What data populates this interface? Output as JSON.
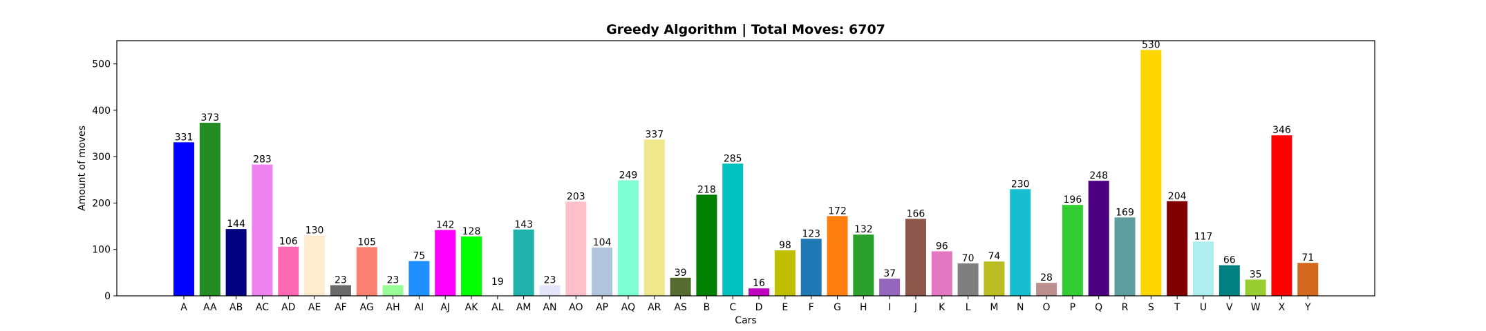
{
  "chart_data": {
    "type": "bar",
    "title": "Greedy Algorithm | Total Moves: 6707",
    "xlabel": "Cars",
    "ylabel": "Amount of moves",
    "ylim": [
      0,
      550
    ],
    "yticks": [
      0,
      100,
      200,
      300,
      400,
      500
    ],
    "grid": false,
    "categories": [
      "A",
      "AA",
      "AB",
      "AC",
      "AD",
      "AE",
      "AF",
      "AG",
      "AH",
      "AI",
      "AJ",
      "AK",
      "AL",
      "AM",
      "AN",
      "AO",
      "AP",
      "AQ",
      "AR",
      "AS",
      "B",
      "C",
      "D",
      "E",
      "F",
      "G",
      "H",
      "I",
      "J",
      "K",
      "L",
      "M",
      "N",
      "O",
      "P",
      "Q",
      "R",
      "S",
      "T",
      "U",
      "V",
      "W",
      "X",
      "Y"
    ],
    "values": [
      331,
      373,
      144,
      283,
      106,
      130,
      23,
      105,
      23,
      75,
      142,
      128,
      19,
      143,
      23,
      203,
      104,
      249,
      337,
      39,
      218,
      285,
      16,
      98,
      123,
      172,
      132,
      37,
      166,
      96,
      70,
      74,
      230,
      28,
      196,
      248,
      169,
      530,
      204,
      117,
      66,
      35,
      346,
      71
    ],
    "colors": [
      "#0000ff",
      "#228b22",
      "#000080",
      "#ee82ee",
      "#ff69b4",
      "#ffebcd",
      "#696969",
      "#fa8072",
      "#98fb98",
      "#1e90ff",
      "#ff00ff",
      "#00ff00",
      "#ffffff",
      "#20b2aa",
      "#e6e6fa",
      "#ffc0cb",
      "#b0c4de",
      "#7fffd4",
      "#f0e68c",
      "#556b2f",
      "#008000",
      "#00c0c0",
      "#c000c0",
      "#bfbf00",
      "#1f77b4",
      "#ff7f0e",
      "#2ca02c",
      "#9467bd",
      "#8c564b",
      "#e377c2",
      "#7f7f7f",
      "#bcbd22",
      "#17becf",
      "#bc8f8f",
      "#32cd32",
      "#4b0082",
      "#5f9ea0",
      "#ffd700",
      "#800000",
      "#afeeee",
      "#008080",
      "#9acd32",
      "#ff0000",
      "#d2691e"
    ]
  }
}
